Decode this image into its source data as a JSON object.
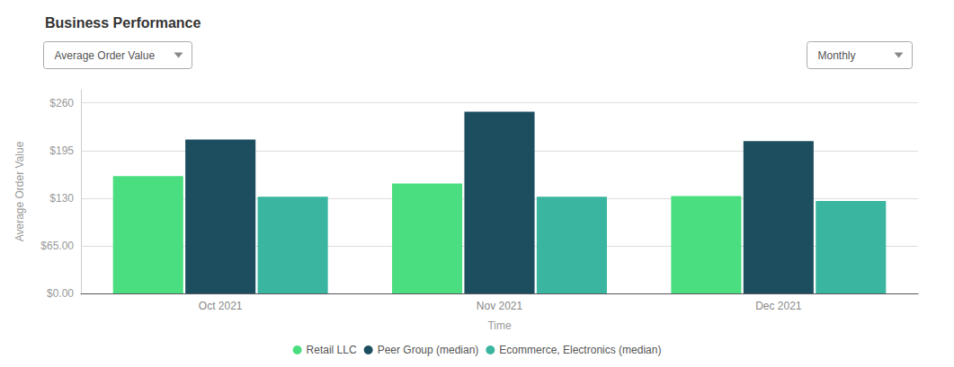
{
  "chart_data": {
    "type": "bar",
    "title": "Business Performance",
    "xlabel": "Time",
    "ylabel": "Average Order Value",
    "annotations": [
      {
        "text": "Average Order Value"
      },
      {
        "text": "Monthly"
      }
    ],
    "categories": [
      "Oct 2021",
      "Nov 2021",
      "Dec 2021"
    ],
    "series": [
      {
        "name": "Retail LLC",
        "color": "#4ade80",
        "values": [
          160,
          150,
          133
        ]
      },
      {
        "name": "Peer Group (median)",
        "color": "#1d4e5f",
        "values": [
          210,
          248,
          208
        ]
      },
      {
        "name": "Ecommerce, Electronics (median)",
        "color": "#3ab5a0",
        "values": [
          132,
          132,
          126
        ]
      }
    ],
    "ylim": [
      0,
      278
    ],
    "yticks": [
      {
        "value": 0,
        "label": "$0.00"
      },
      {
        "value": 65,
        "label": "$65.00"
      },
      {
        "value": 130,
        "label": "$130"
      },
      {
        "value": 195,
        "label": "$195"
      },
      {
        "value": 260,
        "label": "$260"
      }
    ],
    "grid": true,
    "legend": "bottom"
  }
}
